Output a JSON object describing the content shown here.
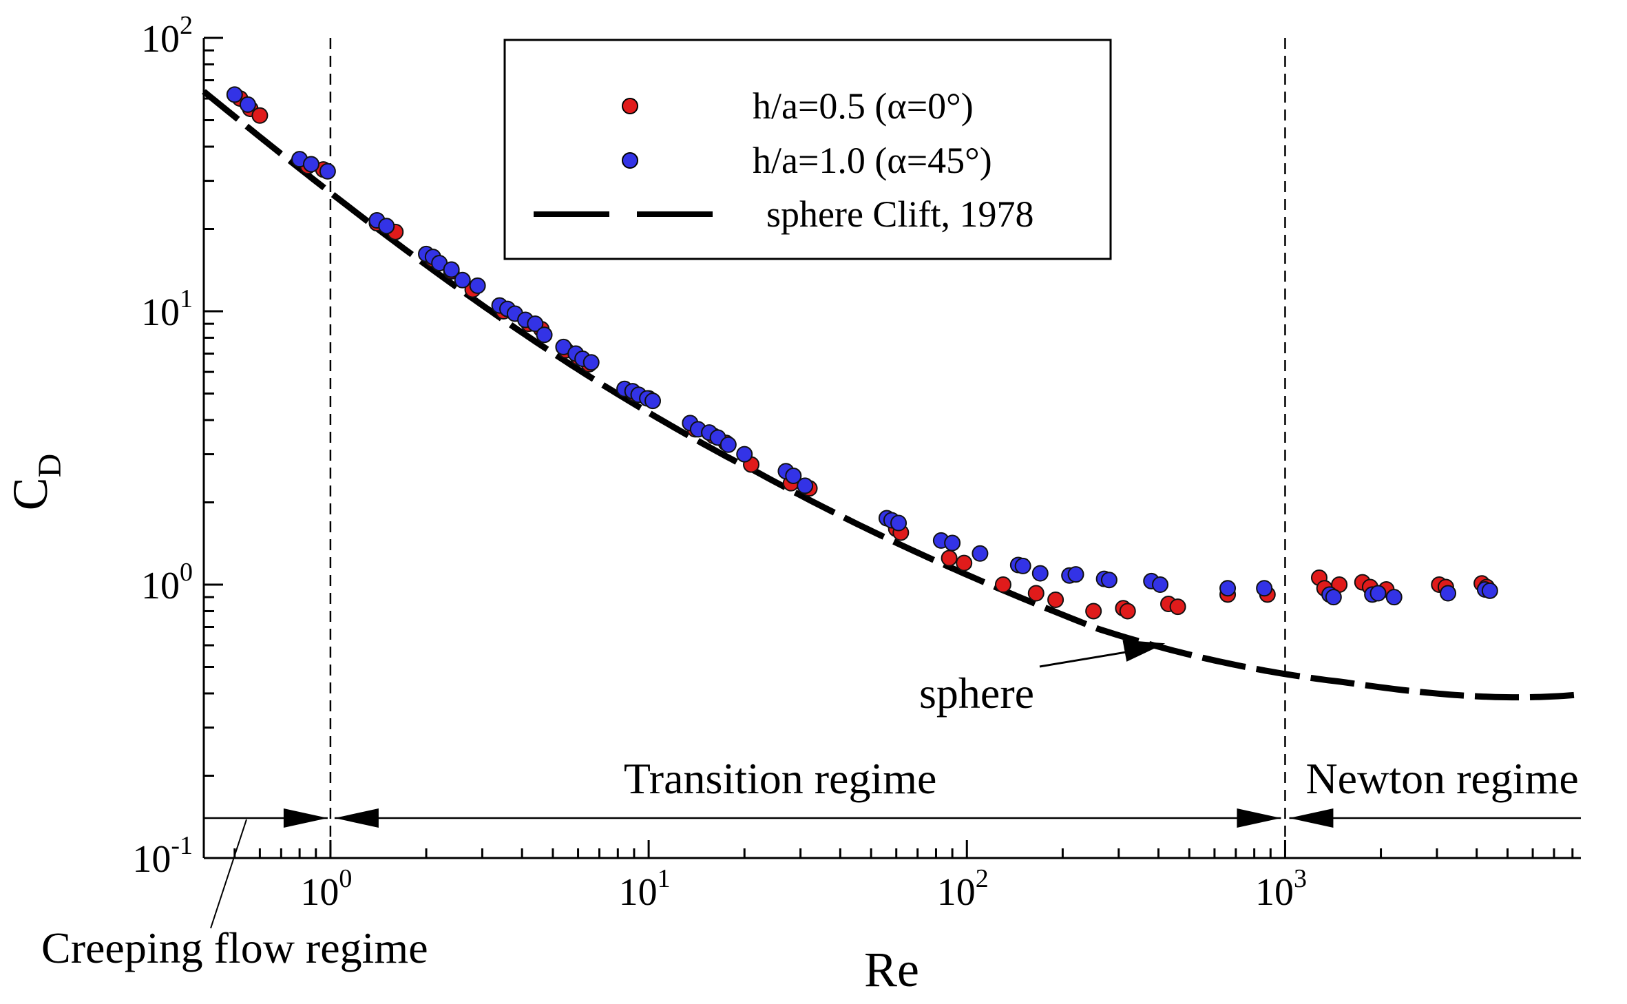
{
  "chart_data": {
    "type": "scatter",
    "title": "",
    "xlabel": "Re",
    "ylabel": "C_D",
    "xscale": "log",
    "yscale": "log",
    "xlim": [
      0.4,
      8500
    ],
    "ylim": [
      0.1,
      100
    ],
    "xticks_major": [
      {
        "value": 1,
        "base": "10",
        "exp": "0"
      },
      {
        "value": 10,
        "base": "10",
        "exp": "1"
      },
      {
        "value": 100,
        "base": "10",
        "exp": "2"
      },
      {
        "value": 1000,
        "base": "10",
        "exp": "3"
      }
    ],
    "yticks_major": [
      {
        "value": 0.1,
        "base": "10",
        "exp": "-1"
      },
      {
        "value": 1,
        "base": "10",
        "exp": "0"
      },
      {
        "value": 10,
        "base": "10",
        "exp": "1"
      },
      {
        "value": 100,
        "base": "10",
        "exp": "2"
      }
    ],
    "grid": false,
    "legend": {
      "location": "upper-center",
      "entries": [
        {
          "label": "h/a=0.5 (α=0°)",
          "marker": "circle",
          "color": "#e01b1b"
        },
        {
          "label": "h/a=1.0 (α=45°)",
          "marker": "circle",
          "color": "#3333e6"
        },
        {
          "label": "sphere Clift, 1978",
          "marker": "dashed-line",
          "color": "#000000"
        }
      ]
    },
    "series": [
      {
        "name": "h/a=0.5 (α=0°)",
        "color": "#e01b1b",
        "points": [
          [
            0.52,
            60
          ],
          [
            0.56,
            55
          ],
          [
            0.6,
            52
          ],
          [
            0.85,
            34
          ],
          [
            0.95,
            33
          ],
          [
            1.4,
            21
          ],
          [
            1.6,
            19.5
          ],
          [
            2.1,
            15.5
          ],
          [
            2.4,
            14
          ],
          [
            2.8,
            12
          ],
          [
            3.5,
            10
          ],
          [
            4.2,
            9
          ],
          [
            4.6,
            8.6
          ],
          [
            5.5,
            7.2
          ],
          [
            6,
            6.8
          ],
          [
            6.5,
            6.4
          ],
          [
            9,
            5
          ],
          [
            10,
            4.8
          ],
          [
            14,
            3.7
          ],
          [
            16,
            3.5
          ],
          [
            17.5,
            3.3
          ],
          [
            21,
            2.75
          ],
          [
            28,
            2.35
          ],
          [
            32,
            2.25
          ],
          [
            60,
            1.6
          ],
          [
            62,
            1.55
          ],
          [
            88,
            1.25
          ],
          [
            98,
            1.2
          ],
          [
            130,
            1.0
          ],
          [
            165,
            0.93
          ],
          [
            190,
            0.88
          ],
          [
            250,
            0.8
          ],
          [
            310,
            0.82
          ],
          [
            320,
            0.8
          ],
          [
            430,
            0.85
          ],
          [
            460,
            0.83
          ],
          [
            660,
            0.92
          ],
          [
            880,
            0.92
          ],
          [
            1280,
            1.06
          ],
          [
            1330,
            0.97
          ],
          [
            1480,
            1.0
          ],
          [
            1750,
            1.02
          ],
          [
            1850,
            0.98
          ],
          [
            2080,
            0.96
          ],
          [
            3050,
            1.0
          ],
          [
            3200,
            0.98
          ],
          [
            4150,
            1.01
          ],
          [
            4300,
            0.98
          ]
        ]
      },
      {
        "name": "h/a=1.0 (α=45°)",
        "color": "#3333e6",
        "points": [
          [
            0.5,
            62
          ],
          [
            0.55,
            57
          ],
          [
            0.8,
            36
          ],
          [
            0.87,
            34.5
          ],
          [
            0.98,
            32.5
          ],
          [
            1.4,
            21.5
          ],
          [
            1.5,
            20.5
          ],
          [
            2,
            16.2
          ],
          [
            2.1,
            15.8
          ],
          [
            2.2,
            15
          ],
          [
            2.4,
            14.2
          ],
          [
            2.6,
            13
          ],
          [
            2.9,
            12.4
          ],
          [
            3.4,
            10.5
          ],
          [
            3.6,
            10.2
          ],
          [
            3.8,
            9.8
          ],
          [
            4.1,
            9.3
          ],
          [
            4.4,
            9
          ],
          [
            4.7,
            8.2
          ],
          [
            5.4,
            7.4
          ],
          [
            5.9,
            7.0
          ],
          [
            6.2,
            6.7
          ],
          [
            6.6,
            6.5
          ],
          [
            8.4,
            5.2
          ],
          [
            8.9,
            5.1
          ],
          [
            9.3,
            4.95
          ],
          [
            9.9,
            4.8
          ],
          [
            10.3,
            4.7
          ],
          [
            13.5,
            3.9
          ],
          [
            14.3,
            3.7
          ],
          [
            15.5,
            3.6
          ],
          [
            16.5,
            3.45
          ],
          [
            17.8,
            3.25
          ],
          [
            20,
            3.0
          ],
          [
            27,
            2.6
          ],
          [
            28.5,
            2.5
          ],
          [
            31,
            2.3
          ],
          [
            56,
            1.75
          ],
          [
            58,
            1.72
          ],
          [
            61,
            1.68
          ],
          [
            83,
            1.45
          ],
          [
            90,
            1.42
          ],
          [
            110,
            1.3
          ],
          [
            145,
            1.18
          ],
          [
            150,
            1.17
          ],
          [
            170,
            1.1
          ],
          [
            210,
            1.08
          ],
          [
            220,
            1.09
          ],
          [
            270,
            1.05
          ],
          [
            280,
            1.04
          ],
          [
            380,
            1.03
          ],
          [
            405,
            1.0
          ],
          [
            660,
            0.97
          ],
          [
            860,
            0.97
          ],
          [
            1380,
            0.92
          ],
          [
            1420,
            0.9
          ],
          [
            1880,
            0.92
          ],
          [
            1960,
            0.93
          ],
          [
            2200,
            0.9
          ],
          [
            3250,
            0.93
          ],
          [
            4250,
            0.96
          ],
          [
            4400,
            0.95
          ]
        ]
      },
      {
        "name": "sphere Clift, 1978",
        "color": "#000000",
        "line_style": "dashed",
        "curve": "sphere drag correlation",
        "x_range": [
          0.4,
          8500
        ]
      }
    ],
    "regime_boundaries": [
      1,
      1000
    ],
    "regimes": [
      {
        "label": "Creeping flow regime",
        "from": 0.4,
        "to": 1
      },
      {
        "label": "Transition regime",
        "from": 1,
        "to": 1000
      },
      {
        "label": "Newton regime",
        "from": 1000,
        "to": 8500
      }
    ],
    "annotations": [
      {
        "text": "sphere",
        "points_to_x": 420,
        "points_to_y": 0.61
      }
    ]
  }
}
